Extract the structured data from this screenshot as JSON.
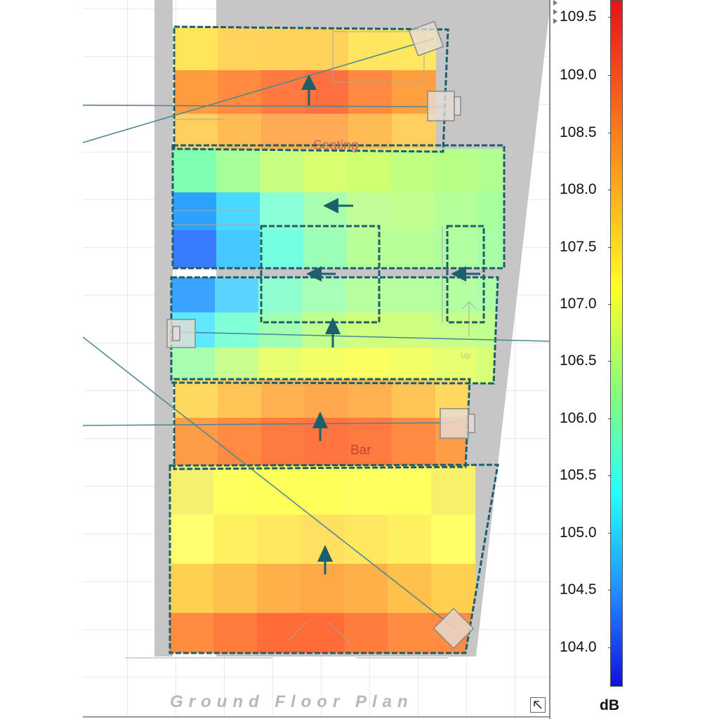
{
  "view": {
    "drawing_title": "Ground Floor Plan",
    "room_labels": {
      "seating": "Seating",
      "bar": "Bar",
      "stairs": "Up"
    }
  },
  "legend": {
    "unit": "dB",
    "ticks": [
      "109.5",
      "109.0",
      "108.5",
      "108.0",
      "107.5",
      "107.0",
      "106.5",
      "106.0",
      "105.5",
      "105.0",
      "104.5",
      "104.0"
    ],
    "colors": {
      "max": "#e8121a",
      "upper": "#ff9c1c",
      "mid": "#ffff22",
      "lower": "#22ffff",
      "min": "#1010e0"
    }
  },
  "controls": {
    "expand_icon": "expand-corner-icon",
    "scroll_icon": "scroll-arrows-icon"
  }
}
